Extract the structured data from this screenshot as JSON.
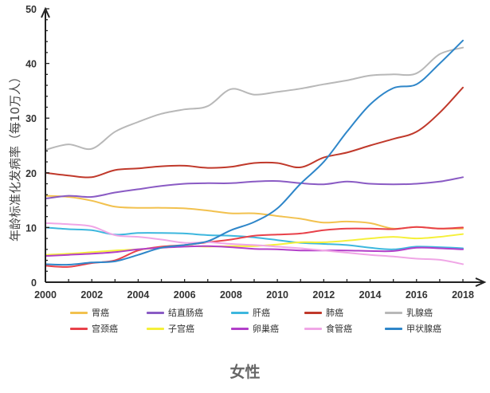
{
  "chart_data": {
    "type": "line",
    "title": "女性",
    "xlabel": "",
    "ylabel": "年龄标准化发病率（每10万人）",
    "xlim": [
      2000,
      2018.6
    ],
    "ylim": [
      0,
      50
    ],
    "x_ticks": [
      "2000",
      "2002",
      "2004",
      "2006",
      "2008",
      "2010",
      "2012",
      "2014",
      "2016",
      "2018"
    ],
    "y_ticks": [
      "0",
      "10",
      "20",
      "30",
      "40",
      "50"
    ],
    "grid": false,
    "legend_position": "bottom",
    "x": [
      2000,
      2001,
      2002,
      2003,
      2004,
      2005,
      2006,
      2007,
      2008,
      2009,
      2010,
      2011,
      2012,
      2013,
      2014,
      2015,
      2016,
      2017,
      2018
    ],
    "series": [
      {
        "name": "胃癌",
        "color": "#f2c14e",
        "values": [
          15.8,
          15.6,
          14.9,
          13.8,
          13.6,
          13.6,
          13.5,
          13.1,
          12.6,
          12.6,
          12.1,
          11.6,
          10.9,
          11.1,
          10.8,
          9.8,
          10.1,
          9.8,
          9.8
        ]
      },
      {
        "name": "结直肠癌",
        "color": "#8a5bc4",
        "values": [
          15.3,
          15.8,
          15.6,
          16.4,
          17.0,
          17.6,
          18.0,
          18.1,
          18.1,
          18.4,
          18.5,
          18.1,
          17.9,
          18.4,
          18.0,
          17.9,
          18.0,
          18.4,
          19.2
        ]
      },
      {
        "name": "肝癌",
        "color": "#3db7de",
        "values": [
          10.0,
          9.7,
          9.5,
          8.7,
          9.0,
          9.0,
          8.9,
          8.6,
          8.5,
          8.2,
          7.7,
          7.2,
          7.0,
          6.8,
          6.3,
          6.0,
          6.5,
          6.4,
          6.2
        ]
      },
      {
        "name": "肺癌",
        "color": "#c0392b",
        "values": [
          20.0,
          19.5,
          19.2,
          20.5,
          20.8,
          21.2,
          21.3,
          20.9,
          21.1,
          21.8,
          21.8,
          21.0,
          22.8,
          23.7,
          25.0,
          26.2,
          27.5,
          31.0,
          35.6
        ]
      },
      {
        "name": "乳腺癌",
        "color": "#b8b8b8",
        "values": [
          24.2,
          25.2,
          24.4,
          27.5,
          29.3,
          30.8,
          31.6,
          32.2,
          35.3,
          34.3,
          34.8,
          35.4,
          36.2,
          36.9,
          37.8,
          38.0,
          38.2,
          41.7,
          42.9
        ]
      },
      {
        "name": "宫颈癌",
        "color": "#e8414a",
        "values": [
          3.0,
          2.8,
          3.5,
          4.0,
          5.8,
          6.5,
          6.8,
          7.3,
          7.8,
          8.5,
          8.7,
          8.9,
          9.5,
          9.8,
          9.8,
          9.7,
          10.1,
          9.8,
          10.0
        ]
      },
      {
        "name": "子宫癌",
        "color": "#f5f03a",
        "values": [
          5.0,
          5.2,
          5.5,
          5.8,
          6.0,
          6.3,
          6.6,
          6.5,
          6.6,
          6.6,
          6.9,
          7.3,
          7.3,
          7.6,
          8.0,
          8.3,
          8.0,
          8.3,
          8.8
        ]
      },
      {
        "name": "卵巢癌",
        "color": "#b23fc9",
        "values": [
          4.8,
          5.0,
          5.2,
          5.5,
          6.0,
          6.3,
          6.5,
          6.6,
          6.4,
          6.1,
          6.0,
          5.8,
          5.8,
          5.8,
          5.7,
          5.7,
          6.3,
          6.2,
          6.0
        ]
      },
      {
        "name": "食管癌",
        "color": "#f0a6e6",
        "values": [
          10.8,
          10.6,
          10.2,
          8.6,
          8.3,
          7.8,
          7.2,
          7.3,
          7.0,
          6.8,
          6.5,
          6.2,
          5.8,
          5.4,
          5.0,
          4.7,
          4.3,
          4.1,
          3.3
        ]
      },
      {
        "name": "甲状腺癌",
        "color": "#2e86c9",
        "values": [
          3.3,
          3.2,
          3.6,
          3.8,
          5.0,
          6.3,
          6.8,
          7.5,
          9.5,
          11.0,
          13.5,
          18.0,
          22.0,
          27.5,
          32.5,
          35.5,
          36.2,
          40.0,
          44.2
        ]
      }
    ]
  }
}
